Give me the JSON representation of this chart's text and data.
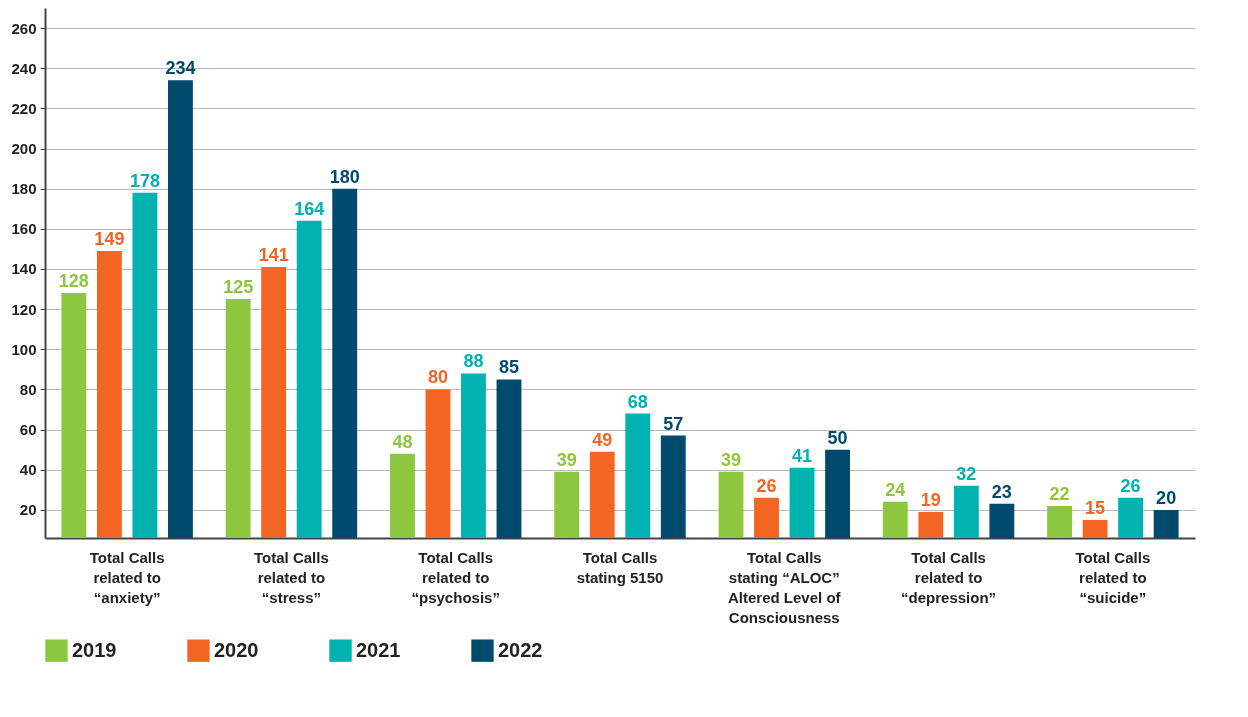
{
  "chart_data": {
    "type": "bar",
    "categories": [
      "Total Calls related to “anxiety”",
      "Total Calls related to “stress”",
      "Total Calls related to “psychosis”",
      "Total Calls stating 5150",
      "Total Calls stating “ALOC” Altered Level of Consciousness",
      "Total Calls related to “depression”",
      "Total Calls related to “suicide”"
    ],
    "series": [
      {
        "name": "2019",
        "color": "#8dc63f",
        "values": [
          128,
          125,
          48,
          39,
          39,
          24,
          22
        ]
      },
      {
        "name": "2020",
        "color": "#f26522",
        "values": [
          149,
          141,
          80,
          49,
          26,
          19,
          15
        ]
      },
      {
        "name": "2021",
        "color": "#00b2b0",
        "values": [
          178,
          164,
          88,
          68,
          41,
          32,
          26
        ]
      },
      {
        "name": "2022",
        "color": "#004a6e",
        "values": [
          234,
          180,
          85,
          57,
          50,
          23,
          20
        ]
      }
    ],
    "ylim": [
      6,
      270
    ],
    "yticks": [
      20,
      40,
      60,
      80,
      100,
      120,
      140,
      160,
      180,
      200,
      220,
      240,
      260
    ],
    "grid": "y",
    "legend": "bottom",
    "data_labels": true
  }
}
